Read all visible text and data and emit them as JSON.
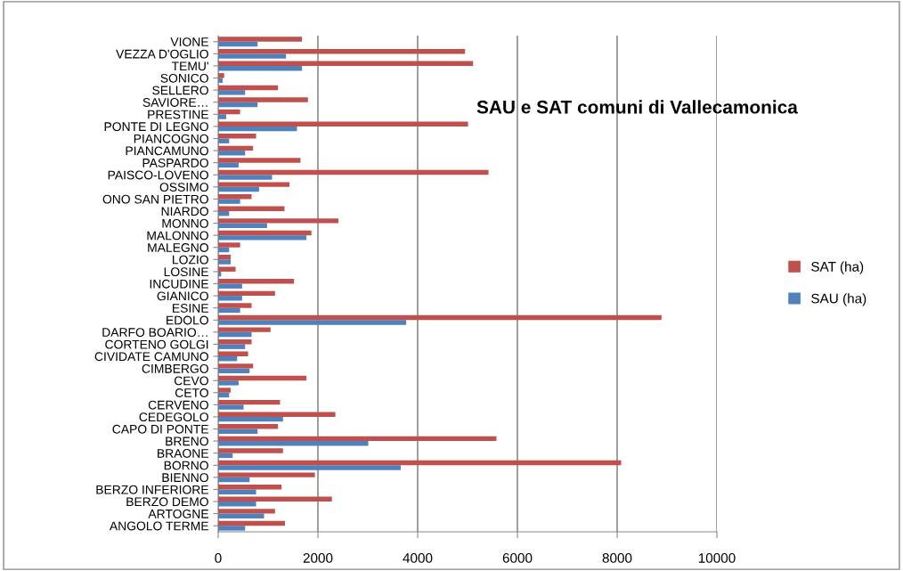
{
  "chart_data": {
    "type": "bar",
    "orientation": "horizontal",
    "title": "SAU e SAT comuni di Vallecamonica",
    "categories": [
      "VIONE",
      "VEZZA D'OGLIO",
      "TEMU'",
      "SONICO",
      "SELLERO",
      "SAVIORE…",
      "PRESTINE",
      "PONTE DI LEGNO",
      "PIANCOGNO",
      "PIANCAMUNO",
      "PASPARDO",
      "PAISCO-LOVENO",
      "OSSIMO",
      "ONO SAN PIETRO",
      "NIARDO",
      "MONNO",
      "MALONNO",
      "MALEGNO",
      "LOZIO",
      "LOSINE",
      "INCUDINE",
      "GIANICO",
      "ESINE",
      "EDOLO",
      "DARFO BOARIO…",
      "CORTENO GOLGI",
      "CIVIDATE CAMUNO",
      "CIMBERGO",
      "CEVO",
      "CETO",
      "CERVENO",
      "CEDEGOLO",
      "CAPO DI PONTE",
      "BRENO",
      "BRAONE",
      "BORNO",
      "BIENNO",
      "BERZO INFERIORE",
      "BERZO DEMO",
      "ARTOGNE",
      "ANGOLO TERME"
    ],
    "series": [
      {
        "name": "SAU (ha)",
        "color": "#4f81bd",
        "values": [
          790,
          1360,
          1680,
          90,
          540,
          790,
          160,
          1580,
          220,
          540,
          410,
          1080,
          820,
          440,
          220,
          980,
          1770,
          220,
          250,
          60,
          480,
          480,
          440,
          3770,
          670,
          540,
          380,
          630,
          410,
          220,
          510,
          1300,
          790,
          3010,
          290,
          3660,
          630,
          760,
          760,
          920,
          540
        ]
      },
      {
        "name": "SAT (ha)",
        "color": "#c0504d",
        "values": [
          1680,
          4950,
          5110,
          120,
          1200,
          1800,
          440,
          5010,
          760,
          700,
          1650,
          5420,
          1430,
          670,
          1330,
          2410,
          1870,
          440,
          250,
          350,
          1520,
          1140,
          670,
          8890,
          1050,
          670,
          600,
          700,
          1770,
          250,
          1240,
          2350,
          1200,
          5580,
          1300,
          8080,
          1940,
          1270,
          2280,
          1140,
          1340
        ]
      }
    ],
    "xlim": [
      0,
      10000
    ],
    "xticks": [
      0,
      2000,
      4000,
      6000,
      8000,
      10000
    ],
    "grid": "x",
    "legend": "right"
  }
}
